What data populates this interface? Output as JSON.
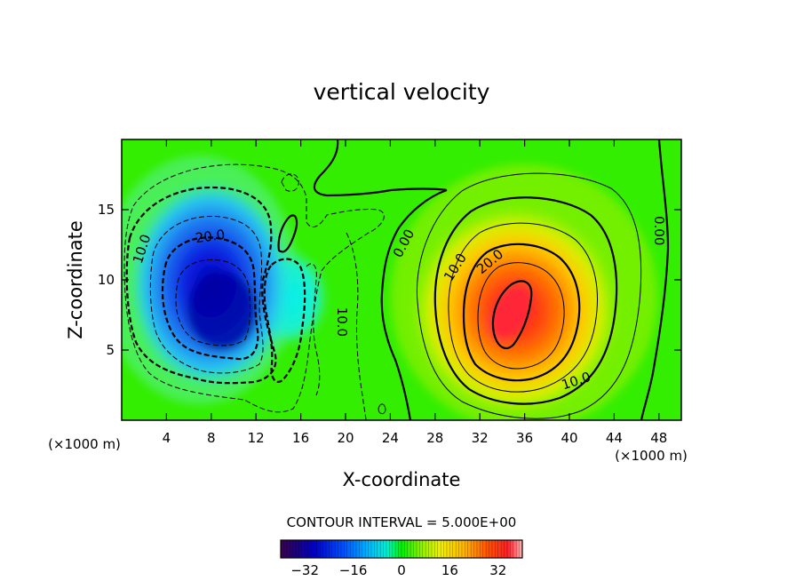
{
  "chart_data": {
    "type": "contour",
    "title": "vertical velocity",
    "xlabel": "X-coordinate",
    "ylabel": "Z-coordinate",
    "x_unit": "(×1000 m)",
    "z_unit": "(×1000 m)",
    "xlim": [
      0,
      50
    ],
    "ylim": [
      0,
      20
    ],
    "x_ticks": [
      4,
      8,
      12,
      16,
      20,
      24,
      28,
      32,
      36,
      40,
      44,
      48
    ],
    "y_ticks": [
      5,
      10,
      15
    ],
    "contour_interval_text": "CONTOUR INTERVAL = 5.000E+00",
    "contour_labels": [
      {
        "text": "10.0",
        "x": 1.8,
        "z": 12.2,
        "angle": -72
      },
      {
        "text": "20.0",
        "x": 7.9,
        "z": 13.1,
        "angle": -8
      },
      {
        "text": "10.0",
        "x": 19.7,
        "z": 7.0,
        "angle": 90
      },
      {
        "text": "0.00",
        "x": 25.2,
        "z": 12.6,
        "angle": -62
      },
      {
        "text": "10.0",
        "x": 29.8,
        "z": 10.9,
        "angle": -58
      },
      {
        "text": "20.0",
        "x": 32.9,
        "z": 11.3,
        "angle": -40
      },
      {
        "text": "10.0",
        "x": 40.6,
        "z": 2.8,
        "angle": -18
      },
      {
        "text": "0.00",
        "x": 48.0,
        "z": 13.5,
        "angle": 90
      }
    ],
    "features": [
      {
        "name": "downdraft core",
        "x": 9.5,
        "z": 7.5,
        "peak": -32
      },
      {
        "name": "updraft core",
        "x": 34,
        "z": 8,
        "peak": 32
      }
    ],
    "colorbar": {
      "min": -40,
      "max": 40,
      "ticks": [
        -32,
        -16,
        0,
        16,
        32
      ],
      "tick_labels": [
        "−32",
        "−16",
        "0",
        "16",
        "32"
      ]
    }
  }
}
